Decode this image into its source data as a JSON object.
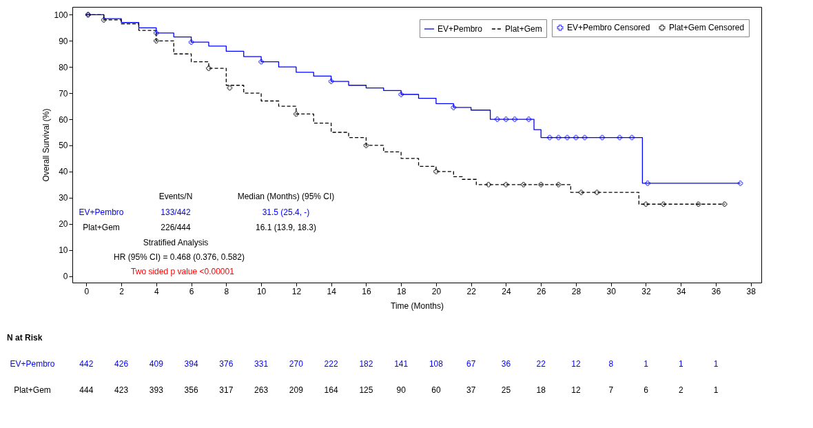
{
  "chart_data": {
    "type": "step",
    "xlabel": "Time (Months)",
    "ylabel": "Overall Survival (%)",
    "xlim": [
      -0.8,
      38.6
    ],
    "ylim": [
      -2.5,
      103
    ],
    "xticks": [
      0,
      2,
      4,
      6,
      8,
      10,
      12,
      14,
      16,
      18,
      20,
      22,
      24,
      26,
      28,
      30,
      32,
      34,
      36,
      38
    ],
    "yticks": [
      0,
      10,
      20,
      30,
      40,
      50,
      60,
      70,
      80,
      90,
      100
    ],
    "grid": false,
    "legend": "top right",
    "series": [
      {
        "name": "EV+Pembro",
        "type": "step",
        "color": "#0000ff",
        "line_style": "solid",
        "x": [
          0,
          1,
          2,
          3,
          4,
          5,
          6,
          7,
          8,
          9,
          10,
          11,
          12,
          13,
          14,
          15,
          16,
          17,
          18,
          19,
          20,
          21,
          22,
          23.1,
          25.6,
          26,
          31.8,
          37.4
        ],
        "values": [
          100,
          98.5,
          97,
          95,
          93,
          91.5,
          89.5,
          88,
          86,
          84,
          82,
          80,
          78,
          76.5,
          74.5,
          73,
          72,
          71,
          69.5,
          68,
          66,
          64.5,
          63.5,
          60,
          56,
          53,
          35.5,
          35.5
        ]
      },
      {
        "name": "Plat+Gem",
        "type": "step",
        "color": "#000000",
        "line_style": "dashed",
        "x": [
          0,
          1,
          2,
          3,
          4,
          5,
          6,
          7,
          8,
          9,
          10,
          11,
          12,
          13,
          14,
          15,
          16,
          17,
          18,
          19,
          20,
          21,
          21.5,
          22.3,
          27.7,
          31.6,
          36.5
        ],
        "values": [
          100,
          98,
          96.5,
          94,
          90,
          85,
          82,
          79.5,
          73,
          70,
          67,
          65,
          62,
          58.5,
          55,
          53,
          50,
          47.5,
          45,
          42,
          40,
          38,
          37,
          35,
          32,
          27.5,
          27.5
        ]
      },
      {
        "name": "EV+Pembro Censored",
        "type": "scatter",
        "marker": "cross",
        "color": "#0000ff",
        "x": [
          0.1,
          4,
          6,
          10,
          14,
          18,
          21,
          23.5,
          24,
          24.5,
          25.3,
          26.5,
          27,
          27.5,
          28,
          28.5,
          29.5,
          30.5,
          31.2,
          32.1,
          37.4
        ],
        "values": [
          100,
          93,
          89.5,
          82,
          74.5,
          69.5,
          64.5,
          60,
          60,
          60,
          60,
          53,
          53,
          53,
          53,
          53,
          53,
          53,
          53,
          35.5,
          35.5
        ]
      },
      {
        "name": "Plat+Gem Censored",
        "type": "scatter",
        "marker": "cross",
        "color": "#000000",
        "x": [
          0.1,
          1,
          4,
          7,
          8.2,
          12,
          16,
          20,
          23,
          24,
          25,
          26,
          27,
          28.3,
          29.2,
          32,
          33,
          35,
          36.5
        ],
        "values": [
          100,
          98,
          90,
          79.5,
          72,
          62,
          50,
          40,
          35,
          35,
          35,
          35,
          35,
          32,
          32,
          27.5,
          27.5,
          27.5,
          27.5
        ]
      }
    ],
    "annotations": [
      "Events/N",
      "Median (Months) (95% CI)",
      "EV+Pembro",
      "133/442",
      "31.5 (25.4, -)",
      "Plat+Gem",
      "226/444",
      "16.1 (13.9, 18.3)",
      "Stratified Analysis",
      "HR (95% CI) = 0.468 (0.376, 0.582)",
      "Two sided p value <0.00001",
      "N at Risk",
      "EV+Pembro",
      "442",
      "426",
      "409",
      "394",
      "376",
      "331",
      "270",
      "222",
      "182",
      "141",
      "108",
      "67",
      "36",
      "22",
      "12",
      "8",
      "1",
      "1",
      "1",
      "Plat+Gem",
      "444",
      "423",
      "393",
      "356",
      "317",
      "263",
      "209",
      "164",
      "125",
      "90",
      "60",
      "37",
      "25",
      "18",
      "12",
      "7",
      "6",
      "2",
      "1"
    ]
  }
}
